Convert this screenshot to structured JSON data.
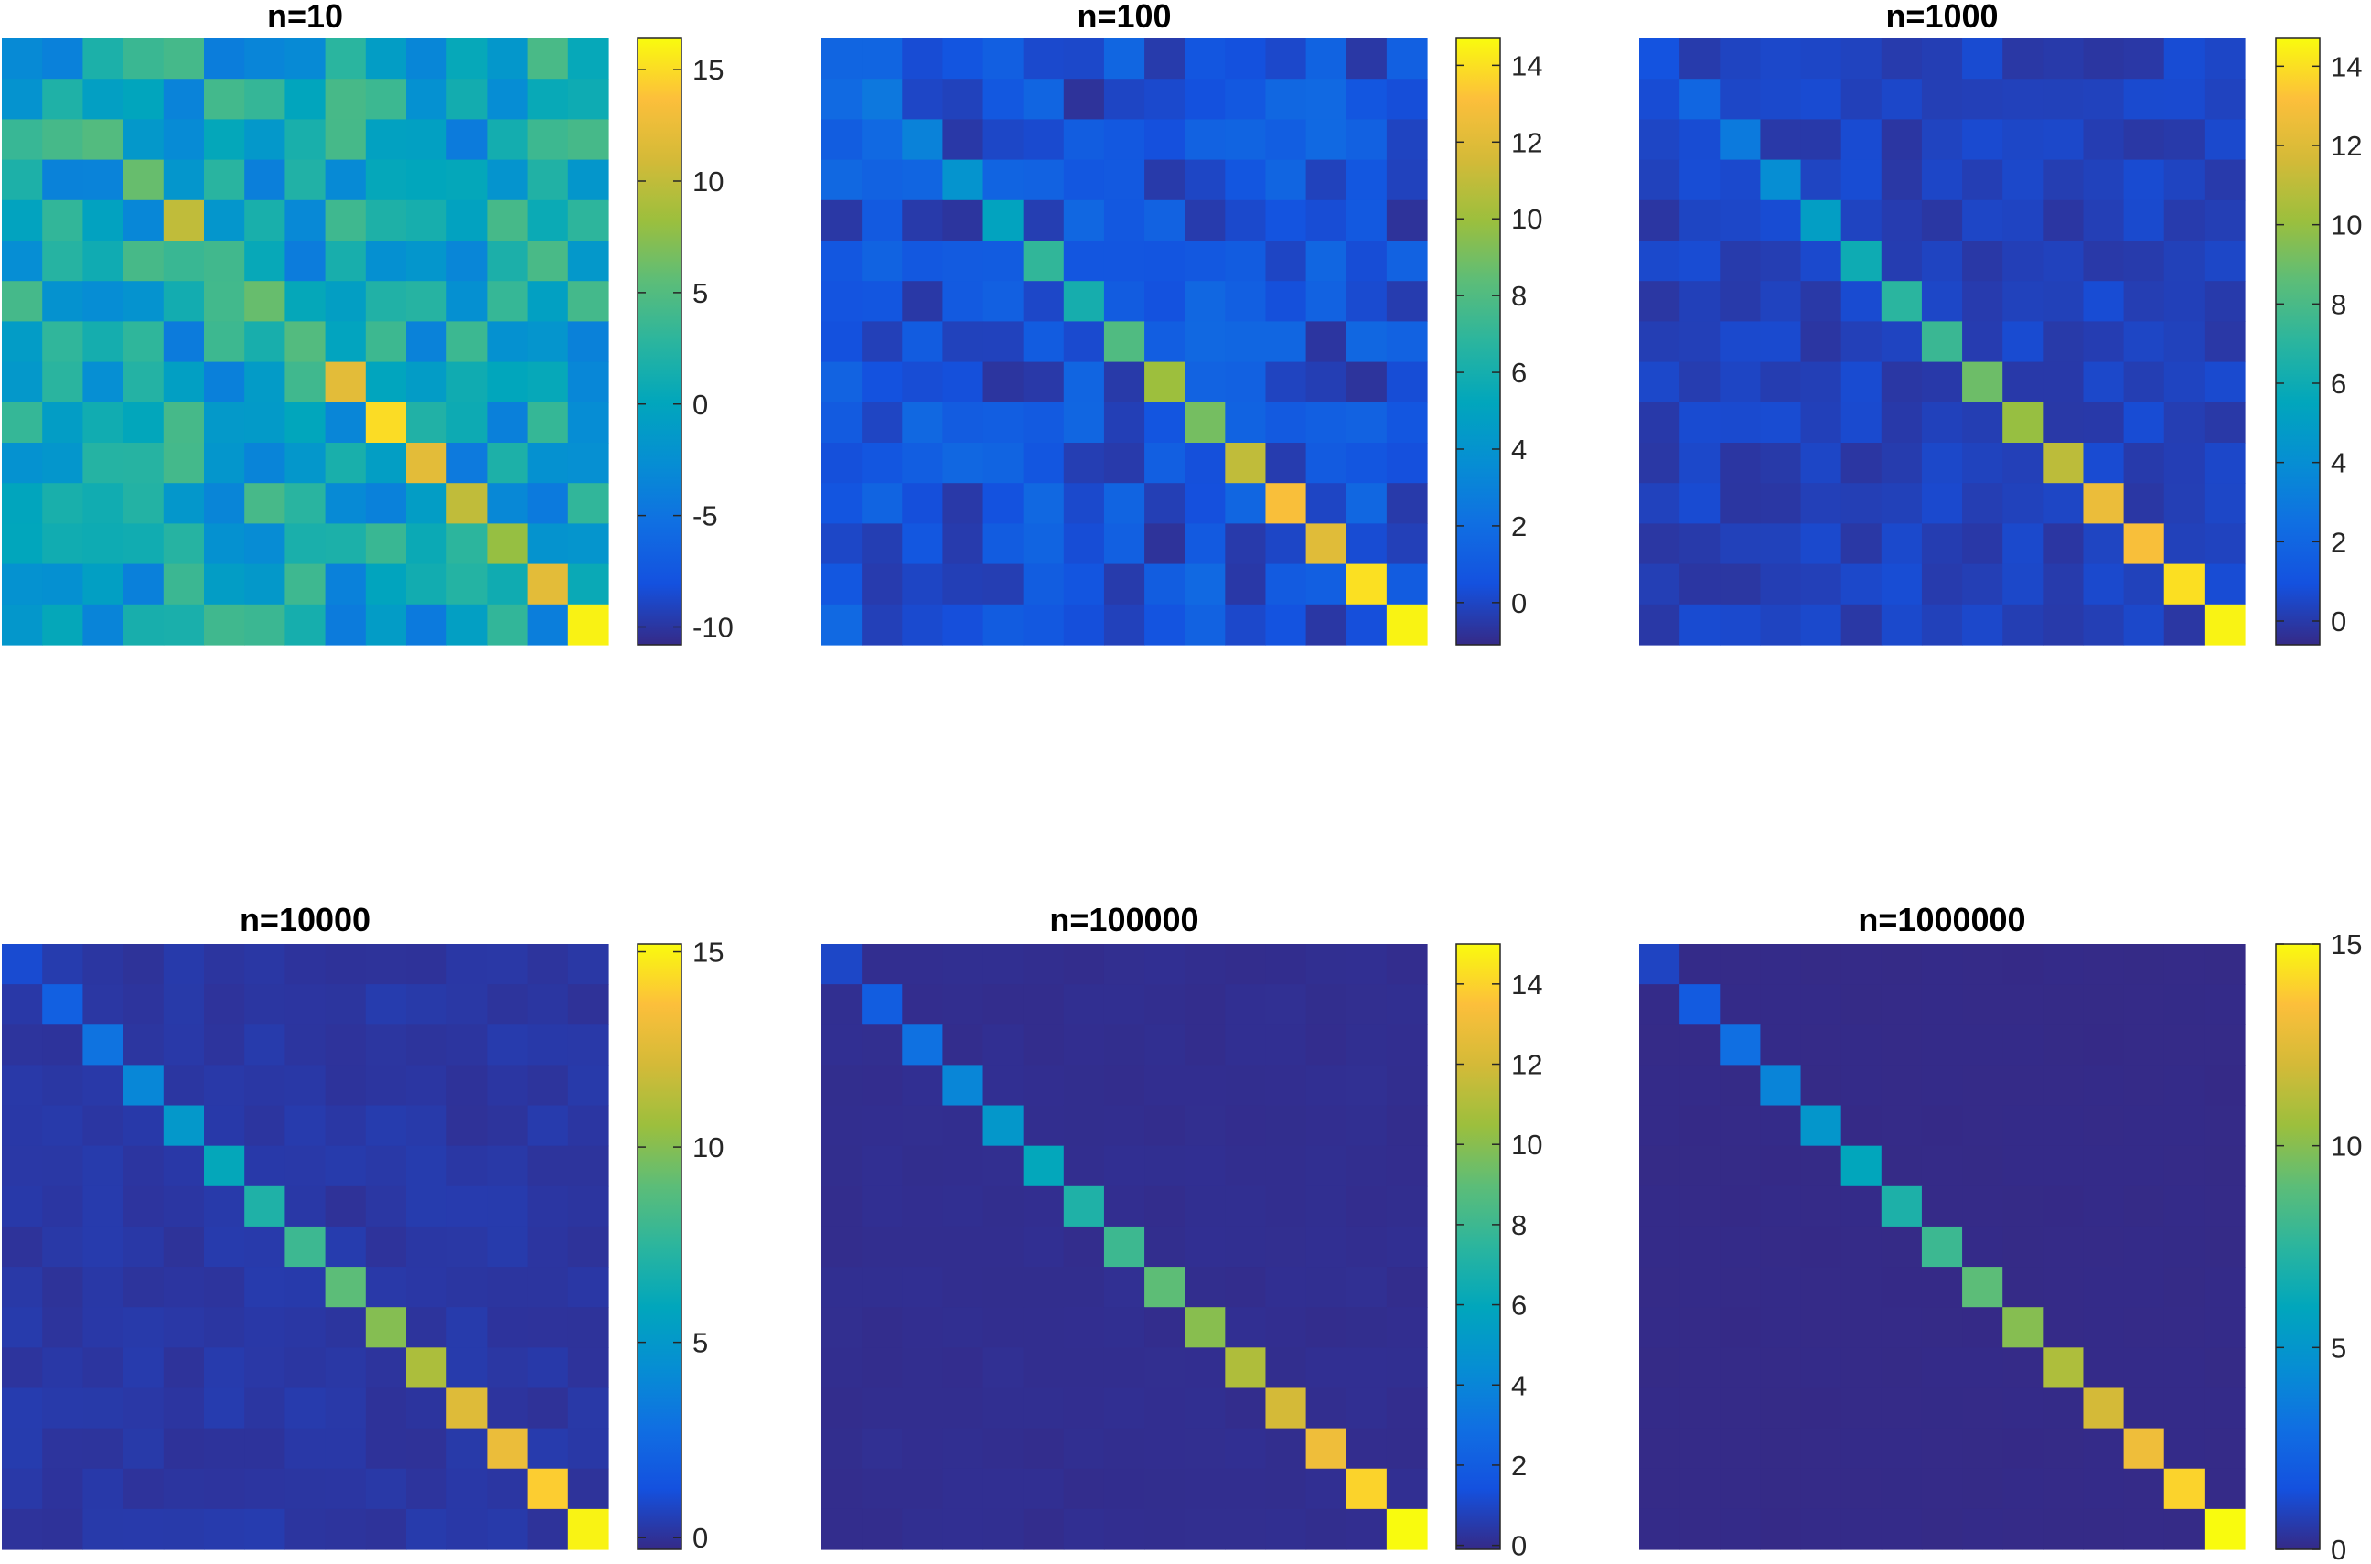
{
  "chart_data": [
    {
      "type": "heatmap",
      "title": "n=10",
      "rows": 15,
      "cols": 15,
      "clim": [
        -10.8,
        16.4
      ],
      "colorbar_ticks": [
        -10,
        -5,
        0,
        5,
        10,
        15
      ],
      "colorbar_tick_labels": [
        "-10",
        "-5",
        "0",
        "5",
        "10",
        "15"
      ],
      "diagonal": [
        -3,
        2,
        5,
        6,
        10,
        4,
        6,
        5,
        12,
        15,
        12,
        10,
        8,
        12,
        16
      ],
      "off_diagonal_range": [
        -10.5,
        5
      ],
      "noise_amplitude": 4.5,
      "off_diagonal_center": 0
    },
    {
      "type": "heatmap",
      "title": "n=100",
      "rows": 15,
      "cols": 15,
      "clim": [
        -1.1,
        14.7
      ],
      "colorbar_ticks": [
        0,
        2,
        4,
        6,
        8,
        10,
        12,
        14
      ],
      "colorbar_tick_labels": [
        "0",
        "2",
        "4",
        "6",
        "8",
        "10",
        "12",
        "14"
      ],
      "diagonal": [
        1.5,
        2.5,
        3,
        4,
        5,
        7,
        6,
        8,
        10,
        9,
        11,
        13,
        12,
        14,
        14.5
      ],
      "off_diagonal_range": [
        -1,
        4
      ],
      "noise_amplitude": 1.3,
      "off_diagonal_center": 0.5
    },
    {
      "type": "heatmap",
      "title": "n=1000",
      "rows": 15,
      "cols": 15,
      "clim": [
        -0.6,
        14.7
      ],
      "colorbar_ticks": [
        0,
        2,
        4,
        6,
        8,
        10,
        12,
        14
      ],
      "colorbar_tick_labels": [
        "0",
        "2",
        "4",
        "6",
        "8",
        "10",
        "12",
        "14"
      ],
      "diagonal": [
        1,
        2,
        3,
        4,
        5,
        6,
        7,
        7.5,
        9,
        10,
        11,
        12.5,
        13,
        14,
        14.5
      ],
      "off_diagonal_range": [
        -0.5,
        1
      ],
      "noise_amplitude": 0.45,
      "off_diagonal_center": 0.3
    },
    {
      "type": "heatmap",
      "title": "n=10000",
      "rows": 15,
      "cols": 15,
      "clim": [
        -0.3,
        15.2
      ],
      "colorbar_ticks": [
        0,
        5,
        10,
        15
      ],
      "colorbar_tick_labels": [
        "0",
        "5",
        "10",
        "15"
      ],
      "diagonal": [
        1,
        2,
        3,
        4,
        5,
        6,
        7,
        8,
        9,
        10,
        11,
        12.5,
        13,
        14,
        15
      ],
      "off_diagonal_range": [
        -0.3,
        0.6
      ],
      "noise_amplitude": 0.2,
      "off_diagonal_center": 0.2
    },
    {
      "type": "heatmap",
      "title": "n=100000",
      "rows": 15,
      "cols": 15,
      "clim": [
        -0.1,
        15
      ],
      "colorbar_ticks": [
        0,
        2,
        4,
        6,
        8,
        10,
        12,
        14
      ],
      "colorbar_tick_labels": [
        "0",
        "2",
        "4",
        "6",
        "8",
        "10",
        "12",
        "14"
      ],
      "diagonal": [
        1,
        2,
        3,
        4,
        5,
        6,
        7,
        8,
        9,
        10,
        11,
        12,
        13,
        14,
        15
      ],
      "off_diagonal_range": [
        -0.1,
        0.2
      ],
      "noise_amplitude": 0.05,
      "off_diagonal_center": 0.05
    },
    {
      "type": "heatmap",
      "title": "n=1000000",
      "rows": 15,
      "cols": 15,
      "clim": [
        0,
        15
      ],
      "colorbar_ticks": [
        0,
        5,
        10,
        15
      ],
      "colorbar_tick_labels": [
        "0",
        "5",
        "10",
        "15"
      ],
      "diagonal": [
        1,
        2,
        3,
        4,
        5,
        6,
        7,
        8,
        9,
        10,
        11,
        12,
        13,
        14,
        15
      ],
      "off_diagonal_range": [
        0,
        0.05
      ],
      "noise_amplitude": 0.02,
      "off_diagonal_center": 0.02
    }
  ],
  "colormap": "parula"
}
